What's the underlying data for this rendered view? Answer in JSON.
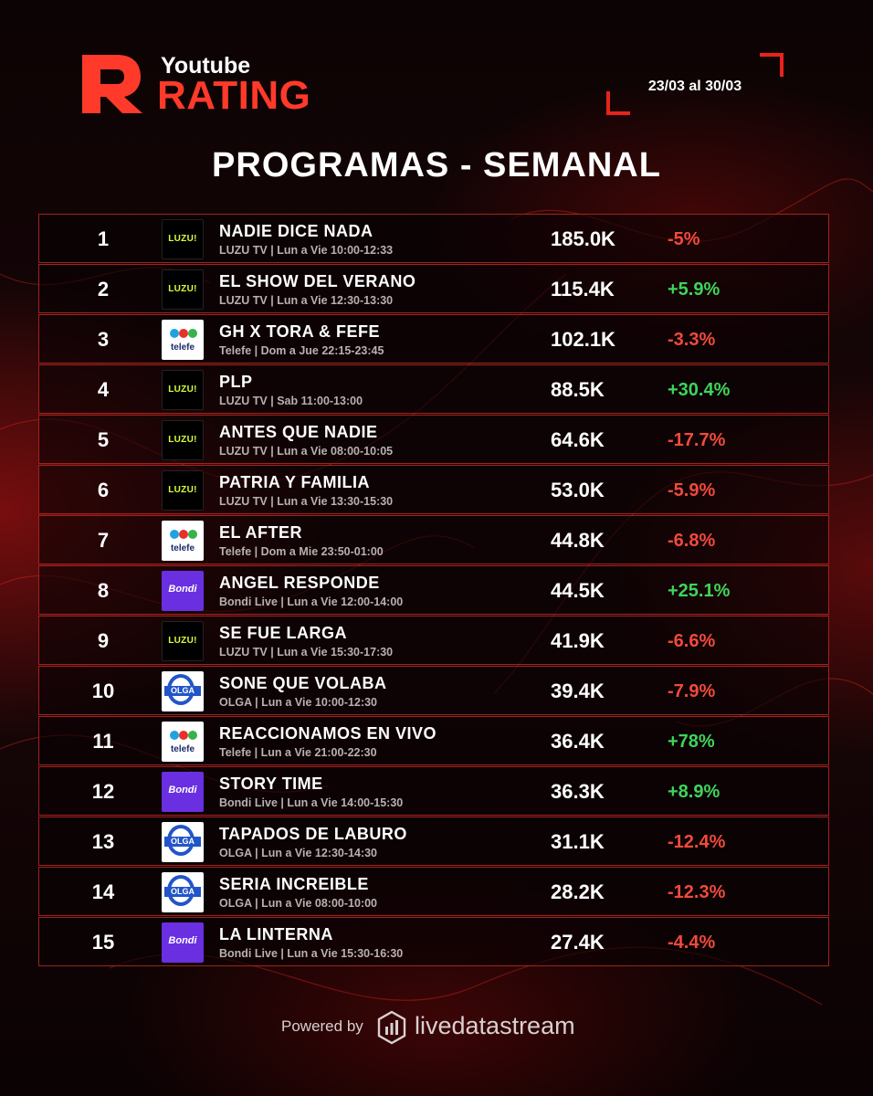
{
  "brand": {
    "small_label": "Youtube",
    "big_label": "RATING",
    "accent_color": "#e8231b"
  },
  "date_range": "23/03 al 30/03",
  "title": "PROGRAMAS - SEMANAL",
  "rows": [
    {
      "rank": "1",
      "channel_logo": "luzu-logo",
      "program": "NADIE DICE NADA",
      "schedule": "LUZU TV | Lun a Vie 10:00-12:33",
      "views": "185.0K",
      "change": "-5%",
      "trend": "neg"
    },
    {
      "rank": "2",
      "channel_logo": "luzu-logo",
      "program": "EL SHOW DEL VERANO",
      "schedule": "LUZU TV | Lun a Vie 12:30-13:30",
      "views": "115.4K",
      "change": "+5.9%",
      "trend": "pos"
    },
    {
      "rank": "3",
      "channel_logo": "telefe-logo",
      "program": "GH X TORA & FEFE",
      "schedule": "Telefe | Dom a Jue 22:15-23:45",
      "views": "102.1K",
      "change": "-3.3%",
      "trend": "neg"
    },
    {
      "rank": "4",
      "channel_logo": "luzu-logo",
      "program": "PLP",
      "schedule": "LUZU TV | Sab 11:00-13:00",
      "views": "88.5K",
      "change": "+30.4%",
      "trend": "pos"
    },
    {
      "rank": "5",
      "channel_logo": "luzu-logo",
      "program": "ANTES QUE NADIE",
      "schedule": "LUZU TV | Lun a Vie 08:00-10:05",
      "views": "64.6K",
      "change": "-17.7%",
      "trend": "neg"
    },
    {
      "rank": "6",
      "channel_logo": "luzu-logo",
      "program": "PATRIA Y FAMILIA",
      "schedule": "LUZU TV | Lun a Vie 13:30-15:30",
      "views": "53.0K",
      "change": "-5.9%",
      "trend": "neg"
    },
    {
      "rank": "7",
      "channel_logo": "telefe-logo",
      "program": "EL AFTER",
      "schedule": "Telefe | Dom a Mie 23:50-01:00",
      "views": "44.8K",
      "change": "-6.8%",
      "trend": "neg"
    },
    {
      "rank": "8",
      "channel_logo": "bondi-logo",
      "program": "ANGEL RESPONDE",
      "schedule": "Bondi Live | Lun a Vie 12:00-14:00",
      "views": "44.5K",
      "change": "+25.1%",
      "trend": "pos"
    },
    {
      "rank": "9",
      "channel_logo": "luzu-logo",
      "program": "SE FUE LARGA",
      "schedule": "LUZU TV | Lun a Vie 15:30-17:30",
      "views": "41.9K",
      "change": "-6.6%",
      "trend": "neg"
    },
    {
      "rank": "10",
      "channel_logo": "olga-logo",
      "program": "SONE QUE VOLABA",
      "schedule": "OLGA | Lun a Vie 10:00-12:30",
      "views": "39.4K",
      "change": "-7.9%",
      "trend": "neg"
    },
    {
      "rank": "11",
      "channel_logo": "telefe-logo",
      "program": "REACCIONAMOS EN VIVO",
      "schedule": "Telefe | Lun a Vie 21:00-22:30",
      "views": "36.4K",
      "change": "+78%",
      "trend": "pos"
    },
    {
      "rank": "12",
      "channel_logo": "bondi-logo",
      "program": "STORY TIME",
      "schedule": "Bondi Live | Lun a Vie 14:00-15:30",
      "views": "36.3K",
      "change": "+8.9%",
      "trend": "pos"
    },
    {
      "rank": "13",
      "channel_logo": "olga-logo",
      "program": "TAPADOS DE LABURO",
      "schedule": "OLGA | Lun a Vie 12:30-14:30",
      "views": "31.1K",
      "change": "-12.4%",
      "trend": "neg"
    },
    {
      "rank": "14",
      "channel_logo": "olga-logo",
      "program": "SERIA INCREIBLE",
      "schedule": "OLGA | Lun a Vie 08:00-10:00",
      "views": "28.2K",
      "change": "-12.3%",
      "trend": "neg"
    },
    {
      "rank": "15",
      "channel_logo": "bondi-logo",
      "program": "LA LINTERNA",
      "schedule": "Bondi Live | Lun a Vie 15:30-16:30",
      "views": "27.4K",
      "change": "-4.4%",
      "trend": "neg"
    }
  ],
  "logo_text": {
    "luzu": "LUZU!",
    "telefe": "telefe",
    "bondi": "Bondi",
    "olga": "OLGA"
  },
  "colors": {
    "positive": "#3ed45a",
    "negative": "#ef4a3c",
    "row_border": "#a3221d"
  },
  "footer": {
    "powered_label": "Powered by",
    "brand_name": "livedatastream",
    "brand_icon": "livedatastream-icon"
  }
}
